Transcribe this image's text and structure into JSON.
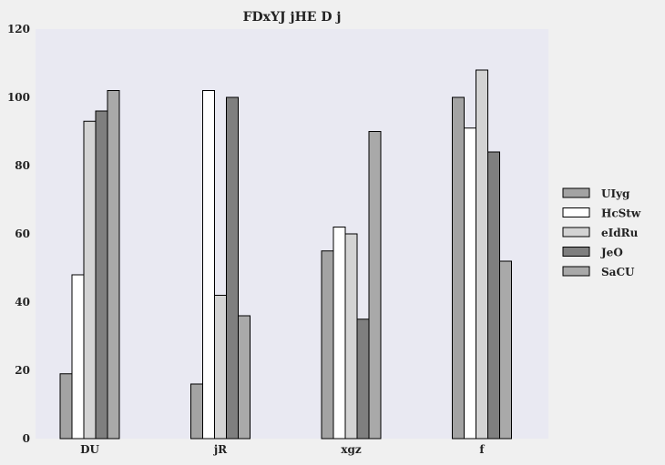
{
  "chart_data": {
    "type": "bar",
    "title": "FDxYJ jHE D j",
    "xlabel": "",
    "ylabel": "",
    "categories": [
      "DU",
      "jR",
      "xgz",
      "f"
    ],
    "ylim": [
      0,
      120
    ],
    "yticks": [
      0,
      20,
      40,
      60,
      80,
      100,
      120
    ],
    "grid": false,
    "legend_position": "right",
    "series": [
      {
        "name": "UIyg",
        "color": "#a3a3a3",
        "values": [
          19,
          16,
          55,
          100
        ]
      },
      {
        "name": "HcStw",
        "color": "#ffffff",
        "values": [
          48,
          102,
          62,
          91
        ]
      },
      {
        "name": "eIdRu",
        "color": "#d3d3d3",
        "values": [
          93,
          42,
          60,
          108
        ]
      },
      {
        "name": "JeO",
        "color": "#7f7f7f",
        "values": [
          96,
          100,
          35,
          84
        ]
      },
      {
        "name": "SaCU",
        "color": "#a9a9a9",
        "values": [
          102,
          36,
          90,
          52
        ]
      }
    ]
  },
  "style": {
    "plot_background": "#e9e9f2",
    "page_background": "#f0f0f0",
    "bar_edge": "#000000"
  }
}
